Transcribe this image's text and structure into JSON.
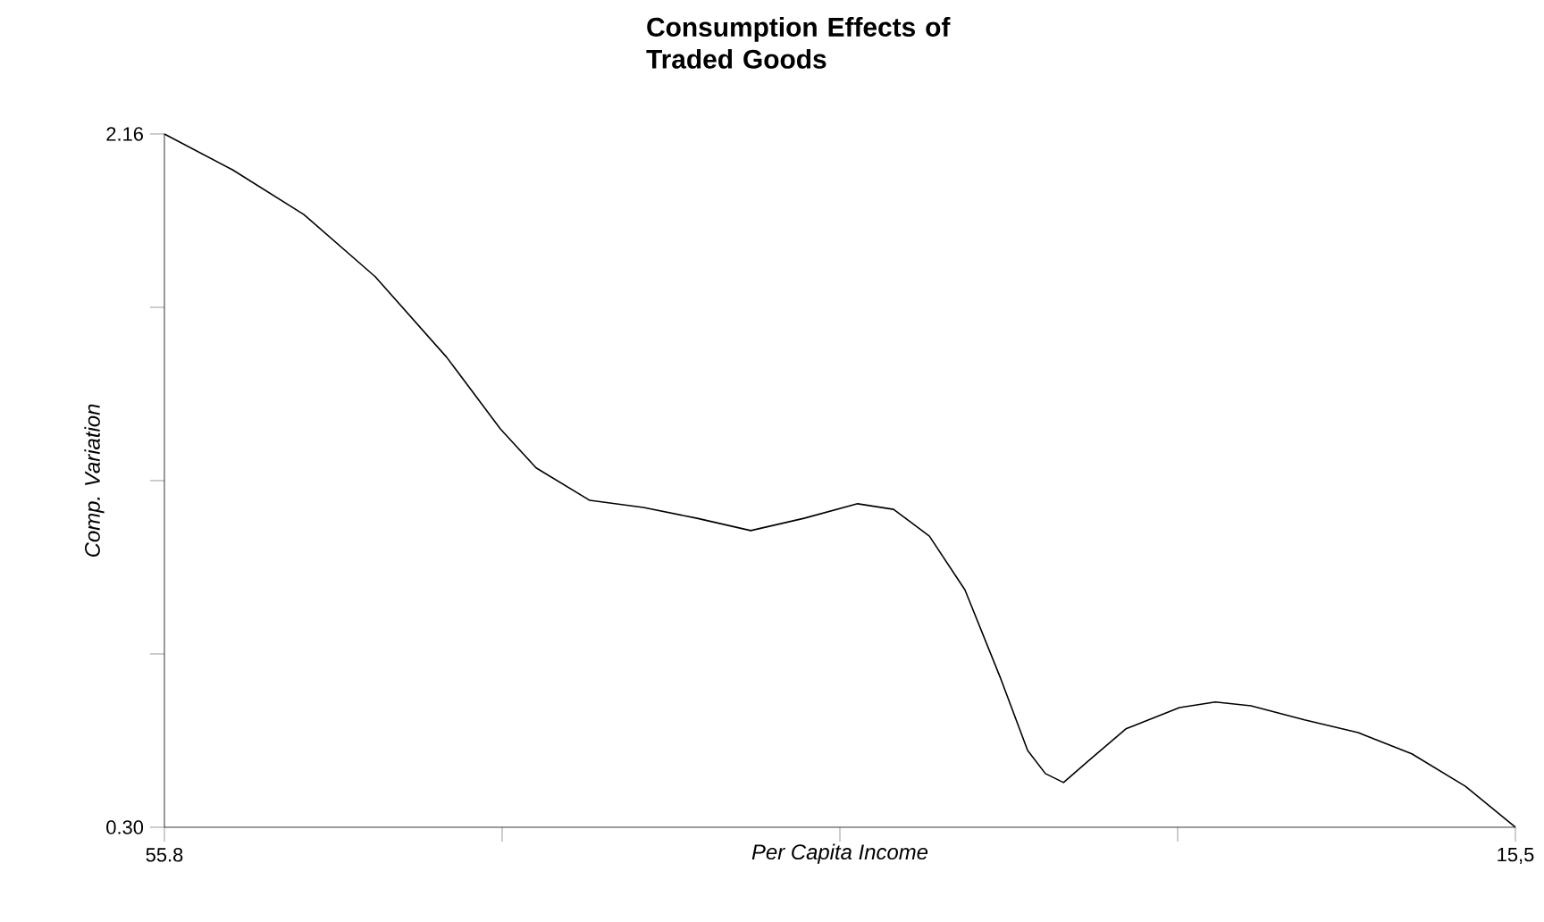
{
  "chart_data": {
    "type": "line",
    "title": "Consumption Effects of Traded Goods",
    "xlabel": "Per Capita Income",
    "ylabel": "Comp. Variation",
    "xlim": [
      55.8,
      15.5
    ],
    "xticks": [
      55.8,
      {
        "value": 45.725,
        "label": null
      },
      {
        "value": 35.65,
        "label": null
      },
      {
        "value": 25.575,
        "label": null
      },
      {
        "value": 15.5,
        "label": "15,5"
      }
    ],
    "ylim": [
      0.3,
      2.16
    ],
    "yticks": [
      {
        "value": 0.3,
        "label": "0.30"
      },
      {
        "value": 0.765,
        "label": null
      },
      {
        "value": 1.23,
        "label": null
      },
      {
        "value": 1.695,
        "label": null
      },
      2.16
    ],
    "grid": false,
    "marker": "none",
    "line_style": "solid",
    "color": "#000000",
    "x": [
      55.8,
      53.77,
      51.64,
      49.51,
      47.38,
      45.78,
      44.71,
      43.11,
      41.51,
      39.91,
      38.31,
      36.72,
      35.12,
      34.05,
      32.98,
      31.92,
      30.85,
      30.05,
      29.52,
      28.98,
      28.19,
      27.12,
      25.52,
      24.45,
      23.39,
      21.79,
      20.19,
      18.59,
      16.99,
      15.5
    ],
    "values": [
      2.16,
      2.064,
      1.944,
      1.777,
      1.561,
      1.369,
      1.264,
      1.177,
      1.158,
      1.129,
      1.096,
      1.129,
      1.168,
      1.153,
      1.081,
      0.937,
      0.698,
      0.506,
      0.444,
      0.42,
      0.482,
      0.564,
      0.621,
      0.636,
      0.626,
      0.588,
      0.554,
      0.497,
      0.41,
      0.3
    ]
  }
}
